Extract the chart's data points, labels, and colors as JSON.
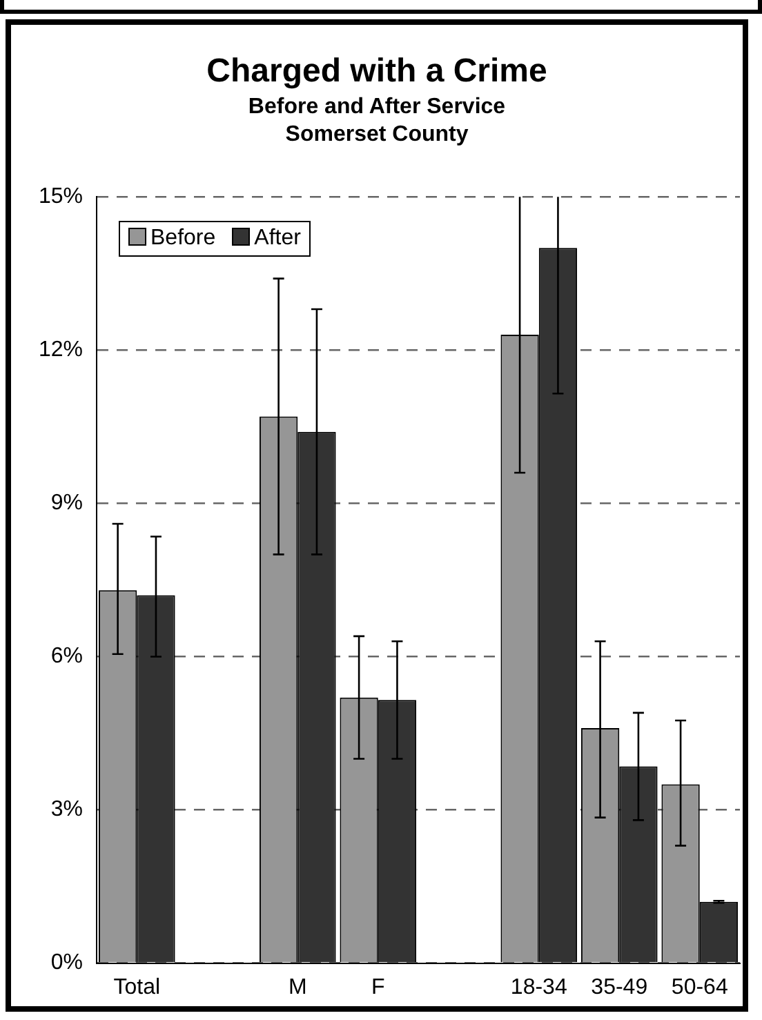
{
  "chart_data": {
    "type": "bar",
    "title": "Charged with a Crime",
    "subtitle": "Before and After Service\nSomerset County",
    "categories": [
      "Total",
      null,
      "M",
      "F",
      null,
      "18-34",
      "35-49",
      "50-64"
    ],
    "series": [
      {
        "name": "Before",
        "color": "#969696",
        "values": [
          7.3,
          null,
          10.7,
          5.2,
          null,
          12.3,
          4.6,
          3.5
        ],
        "errors": [
          [
            6.05,
            8.6
          ],
          null,
          [
            8.0,
            13.4
          ],
          [
            4.0,
            6.4
          ],
          null,
          [
            9.6,
            15
          ],
          [
            2.85,
            6.3
          ],
          [
            2.3,
            4.75
          ]
        ]
      },
      {
        "name": "After",
        "color": "#333333",
        "values": [
          7.2,
          null,
          10.4,
          5.15,
          null,
          14.0,
          3.85,
          1.2
        ],
        "errors": [
          [
            6.0,
            8.35
          ],
          null,
          [
            8.0,
            12.8
          ],
          [
            4.0,
            6.3
          ],
          null,
          [
            11.15,
            15
          ],
          [
            2.8,
            4.9
          ],
          [
            1.18,
            1.22
          ]
        ]
      }
    ],
    "ylim": [
      0,
      15
    ],
    "yticks": [
      {
        "value": 0,
        "label": "0%"
      },
      {
        "value": 3,
        "label": "3%"
      },
      {
        "value": 6,
        "label": "6%"
      },
      {
        "value": 9,
        "label": "9%"
      },
      {
        "value": 12,
        "label": "12%"
      },
      {
        "value": 15,
        "label": "15%"
      }
    ],
    "grid": "y",
    "line_style": "dashed",
    "legend": "top left"
  }
}
